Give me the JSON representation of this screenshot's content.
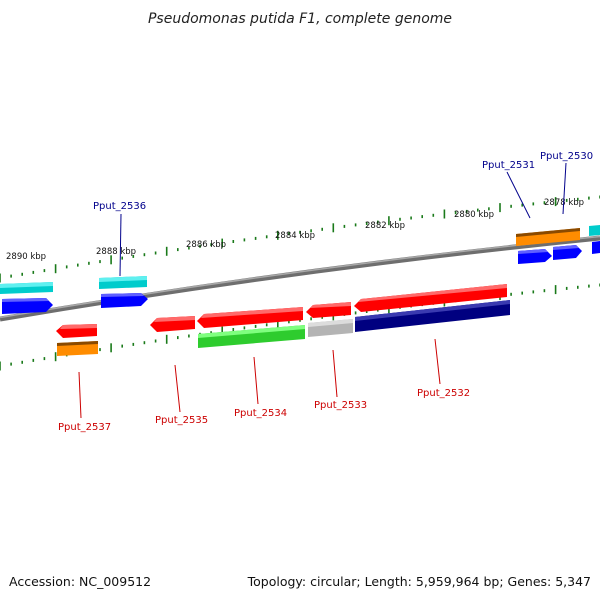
{
  "title": "Pseudomonas putida F1, complete genome",
  "scale_labels": [
    "2890 kbp",
    "2888 kbp",
    "2886 kbp",
    "2884 kbp",
    "2882 kbp",
    "2880 kbp",
    "2878 kbp"
  ],
  "gene_labels_top": [
    "Pput_2536",
    "Pput_2531",
    "Pput_2530"
  ],
  "gene_labels_bottom": [
    "Pput_2537",
    "Pput_2535",
    "Pput_2534",
    "Pput_2533",
    "Pput_2532"
  ],
  "footer": {
    "accession": "Accession: NC_009512",
    "summary": "Topology: circular; Length: 5,959,964 bp; Genes: 5,347"
  },
  "colors": {
    "backbone": "#808080",
    "tick": "#1a7a1a",
    "red": "#ff0000",
    "orange": "#ff8c00",
    "cyan": "#00cfcf",
    "blue": "#0000ff",
    "green": "#2ecc2e",
    "gray": "#b4b4b4",
    "navy": "#000080"
  }
}
